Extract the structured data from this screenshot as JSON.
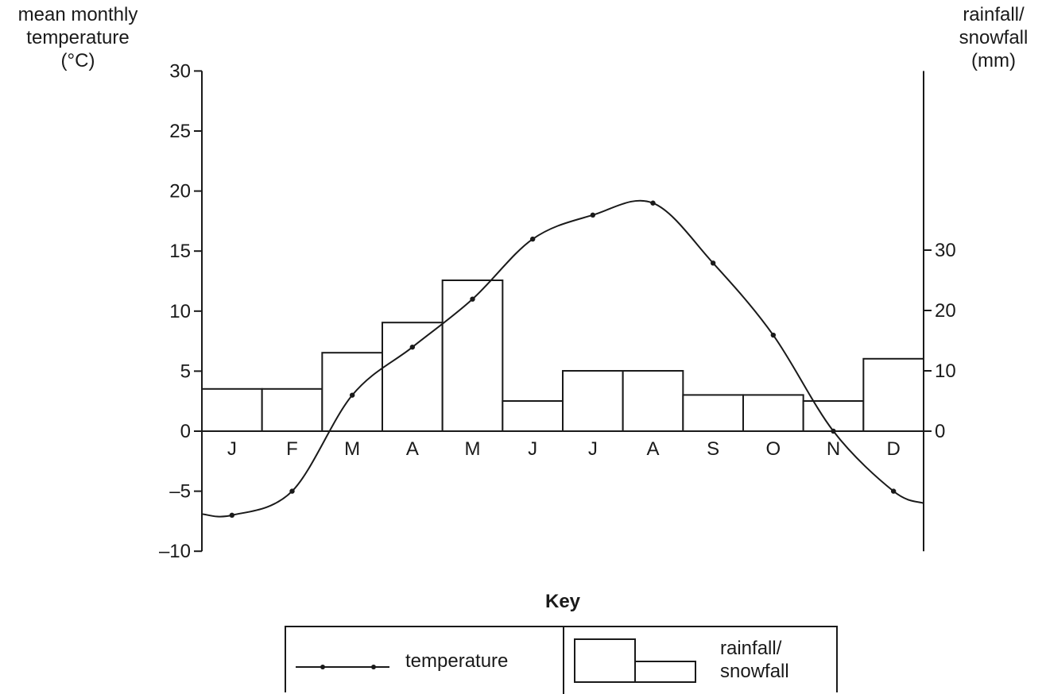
{
  "chart_data": {
    "type": "bar+line",
    "categories": [
      "J",
      "F",
      "M",
      "A",
      "M",
      "J",
      "J",
      "A",
      "S",
      "O",
      "N",
      "D"
    ],
    "temperature": {
      "name": "temperature",
      "values": [
        -7,
        -5,
        3,
        7,
        11,
        16,
        18,
        19,
        14,
        8,
        0,
        -5
      ]
    },
    "rainfall": {
      "name": "rainfall/\nsnowfall",
      "values": [
        7,
        7,
        13,
        18,
        25,
        5,
        10,
        10,
        6,
        6,
        5,
        12
      ]
    },
    "y_left": {
      "label": "mean monthly\ntemperature\n(°C)",
      "ticks": [
        "30",
        "25",
        "20",
        "15",
        "10",
        "5",
        "0",
        "–5",
        "–10"
      ],
      "tick_values": [
        30,
        25,
        20,
        15,
        10,
        5,
        0,
        -5,
        -10
      ],
      "range": [
        -10,
        30
      ]
    },
    "y_right": {
      "label": "rainfall/\nsnowfall\n(mm)",
      "ticks": [
        "30",
        "20",
        "10",
        "0"
      ],
      "tick_values": [
        30,
        20,
        10,
        0
      ],
      "range": [
        0,
        30
      ]
    },
    "legend": {
      "title": "Key",
      "temperature_label": "temperature",
      "rainfall_label": "rainfall/\nsnowfall",
      "placement": "bottom"
    }
  }
}
